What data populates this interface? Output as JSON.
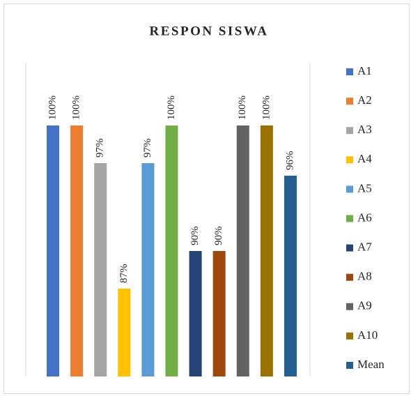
{
  "chart_data": {
    "type": "bar",
    "title": "RESPON SISWA",
    "categories": [
      null
    ],
    "ylim": [
      80,
      105
    ],
    "series": [
      {
        "name": "A1",
        "color": "#4472c4",
        "values": [
          100
        ],
        "value_labels": [
          "100%"
        ]
      },
      {
        "name": "A2",
        "color": "#ed7d31",
        "values": [
          100
        ],
        "value_labels": [
          "100%"
        ]
      },
      {
        "name": "A3",
        "color": "#a5a5a5",
        "values": [
          97
        ],
        "value_labels": [
          "97%"
        ]
      },
      {
        "name": "A4",
        "color": "#ffc000",
        "values": [
          87
        ],
        "value_labels": [
          "87%"
        ]
      },
      {
        "name": "A5",
        "color": "#5b9bd5",
        "values": [
          97
        ],
        "value_labels": [
          "97%"
        ]
      },
      {
        "name": "A6",
        "color": "#70ad47",
        "values": [
          100
        ],
        "value_labels": [
          "100%"
        ]
      },
      {
        "name": "A7",
        "color": "#264478",
        "values": [
          90
        ],
        "value_labels": [
          "90%"
        ]
      },
      {
        "name": "A8",
        "color": "#9e480e",
        "values": [
          90
        ],
        "value_labels": [
          "90%"
        ]
      },
      {
        "name": "A9",
        "color": "#636363",
        "values": [
          100
        ],
        "value_labels": [
          "100%"
        ]
      },
      {
        "name": "A10",
        "color": "#997300",
        "values": [
          100
        ],
        "value_labels": [
          "100%"
        ]
      },
      {
        "name": "Mean",
        "color": "#255e91",
        "values": [
          96
        ],
        "value_labels": [
          "96%"
        ]
      }
    ],
    "legend": "right"
  }
}
